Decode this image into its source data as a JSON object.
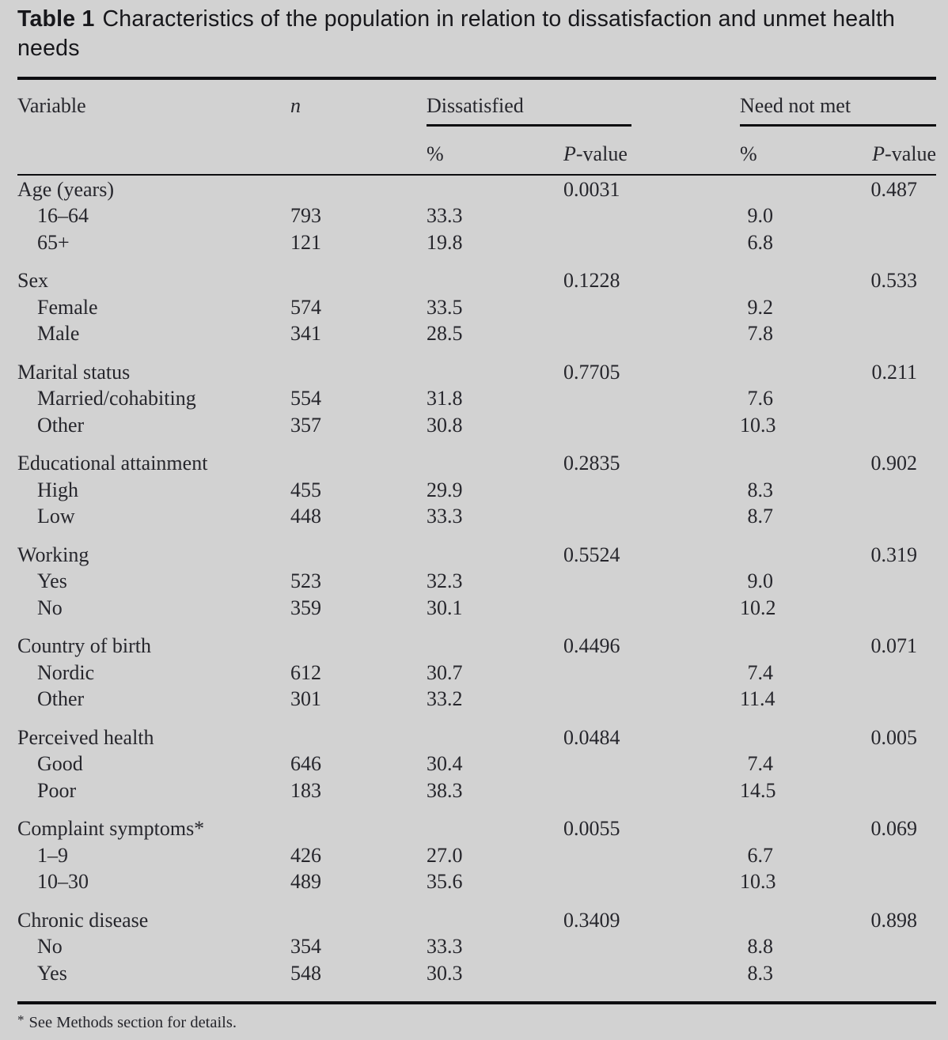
{
  "page": {
    "background": "#d2d2d2",
    "text_color": "#26262c",
    "rule_color": "#0d0d10"
  },
  "title": {
    "label": "Table 1",
    "text": "Characteristics of the population in relation to dissatisfaction and unmet health needs"
  },
  "table": {
    "header": {
      "variable": "Variable",
      "n": "n",
      "group_dissatisfied": "Dissatisfied",
      "group_need_not_met": "Need not met",
      "percent": "%",
      "p_italic": "P",
      "p_rest": "-value"
    },
    "groups": [
      {
        "label": "Age (years)",
        "p_dissatisfied": "0.0031",
        "p_need": "0.487",
        "rows": [
          {
            "label": "16–64",
            "n": "793",
            "pct_dissatisfied": "33.3",
            "pct_need": "9.0"
          },
          {
            "label": "65+",
            "n": "121",
            "pct_dissatisfied": "19.8",
            "pct_need": "6.8"
          }
        ]
      },
      {
        "label": "Sex",
        "p_dissatisfied": "0.1228",
        "p_need": "0.533",
        "rows": [
          {
            "label": "Female",
            "n": "574",
            "pct_dissatisfied": "33.5",
            "pct_need": "9.2"
          },
          {
            "label": "Male",
            "n": "341",
            "pct_dissatisfied": "28.5",
            "pct_need": "7.8"
          }
        ]
      },
      {
        "label": "Marital status",
        "p_dissatisfied": "0.7705",
        "p_need": "0.211",
        "rows": [
          {
            "label": "Married/cohabiting",
            "n": "554",
            "pct_dissatisfied": "31.8",
            "pct_need": "7.6"
          },
          {
            "label": "Other",
            "n": "357",
            "pct_dissatisfied": "30.8",
            "pct_need": "10.3"
          }
        ]
      },
      {
        "label": "Educational attainment",
        "p_dissatisfied": "0.2835",
        "p_need": "0.902",
        "rows": [
          {
            "label": "High",
            "n": "455",
            "pct_dissatisfied": "29.9",
            "pct_need": "8.3"
          },
          {
            "label": "Low",
            "n": "448",
            "pct_dissatisfied": "33.3",
            "pct_need": "8.7"
          }
        ]
      },
      {
        "label": "Working",
        "p_dissatisfied": "0.5524",
        "p_need": "0.319",
        "rows": [
          {
            "label": "Yes",
            "n": "523",
            "pct_dissatisfied": "32.3",
            "pct_need": "9.0"
          },
          {
            "label": "No",
            "n": "359",
            "pct_dissatisfied": "30.1",
            "pct_need": "10.2"
          }
        ]
      },
      {
        "label": "Country of birth",
        "p_dissatisfied": "0.4496",
        "p_need": "0.071",
        "rows": [
          {
            "label": "Nordic",
            "n": "612",
            "pct_dissatisfied": "30.7",
            "pct_need": "7.4"
          },
          {
            "label": "Other",
            "n": "301",
            "pct_dissatisfied": "33.2",
            "pct_need": "11.4"
          }
        ]
      },
      {
        "label": "Perceived health",
        "p_dissatisfied": "0.0484",
        "p_need": "0.005",
        "rows": [
          {
            "label": "Good",
            "n": "646",
            "pct_dissatisfied": "30.4",
            "pct_need": "7.4"
          },
          {
            "label": "Poor",
            "n": "183",
            "pct_dissatisfied": "38.3",
            "pct_need": "14.5"
          }
        ]
      },
      {
        "label": "Complaint symptoms*",
        "p_dissatisfied": "0.0055",
        "p_need": "0.069",
        "rows": [
          {
            "label": "1–9",
            "n": "426",
            "pct_dissatisfied": "27.0",
            "pct_need": "6.7"
          },
          {
            "label": "10–30",
            "n": "489",
            "pct_dissatisfied": "35.6",
            "pct_need": "10.3"
          }
        ]
      },
      {
        "label": "Chronic disease",
        "p_dissatisfied": "0.3409",
        "p_need": "0.898",
        "rows": [
          {
            "label": "No",
            "n": "354",
            "pct_dissatisfied": "33.3",
            "pct_need": "8.8"
          },
          {
            "label": "Yes",
            "n": "548",
            "pct_dissatisfied": "30.3",
            "pct_need": "8.3"
          }
        ]
      }
    ]
  },
  "footnote": {
    "marker": "*",
    "text": "See Methods section for details."
  }
}
